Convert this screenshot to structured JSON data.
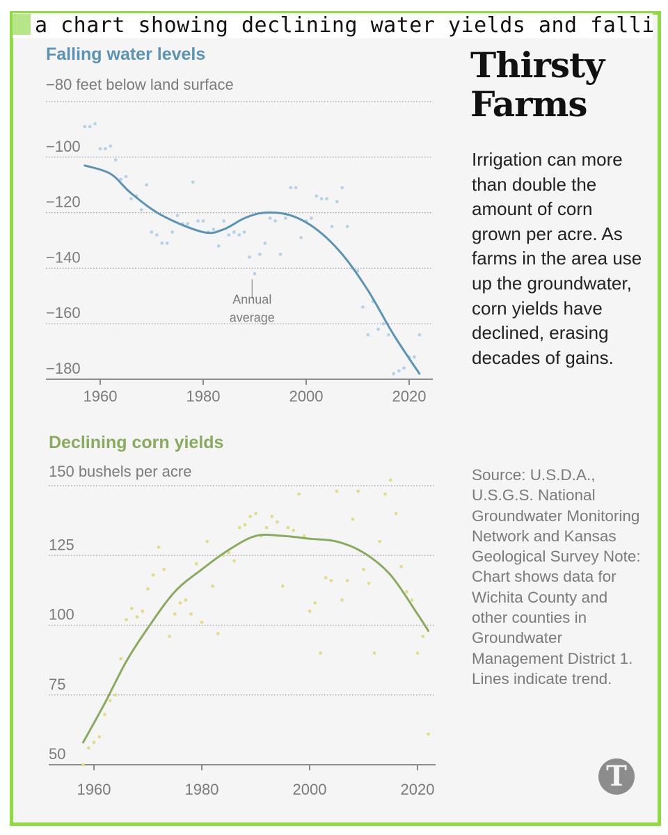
{
  "caption": "a chart showing declining water yields and falling corn",
  "headline": "Thirsty Farms",
  "dek": "Irrigation can more than double the amount of corn grown per acre. As farms in the area use up the groundwater, corn yields have declined, erasing decades of gains.",
  "source_note": "Source: U.S.D.A., U.S.G.S. National Groundwater Monitoring Network and Kansas Geological Survey Note: Chart shows data for Wichita County and other counties in Groundwater Management District 1. Lines indicate trend.",
  "logo_glyph": "T",
  "colors": {
    "water": "#5b93b6",
    "water_dots": "#b6d3e6",
    "corn": "#8aab5f",
    "corn_dots": "#e3dc8c",
    "frame": "#8fdc3f",
    "axis_text": "#7b7b7b"
  },
  "chart_data": [
    {
      "type": "scatter",
      "title": "Falling water levels",
      "unit_label": "feet below land surface",
      "top_label": "−80 feet below land surface",
      "ylim": [
        -180,
        -80
      ],
      "yticks": [
        -100,
        -120,
        -140,
        -160,
        -180
      ],
      "ytick_labels": [
        "−100",
        "−120",
        "−140",
        "−160",
        "−180"
      ],
      "xlim": [
        1955,
        2024
      ],
      "xticks": [
        1960,
        1980,
        2000,
        2020
      ],
      "annotation": "Annual average",
      "grid": true,
      "series": [
        {
          "role": "annual average",
          "x": [
            1957,
            1958,
            1959,
            1960,
            1961,
            1962,
            1963,
            1964,
            1965,
            1966,
            1967,
            1968,
            1969,
            1970,
            1971,
            1972,
            1973,
            1974,
            1975,
            1976,
            1977,
            1978,
            1979,
            1980,
            1981,
            1982,
            1983,
            1984,
            1985,
            1986,
            1987,
            1988,
            1989,
            1990,
            1991,
            1992,
            1993,
            1994,
            1995,
            1996,
            1997,
            1998,
            1999,
            2000,
            2001,
            2002,
            2003,
            2004,
            2005,
            2006,
            2007,
            2008,
            2009,
            2010,
            2011,
            2012,
            2013,
            2014,
            2015,
            2016,
            2017,
            2018,
            2019,
            2020,
            2021,
            2022
          ],
          "y": [
            -89,
            -89,
            -88,
            -97,
            -97,
            -96,
            -101,
            -108,
            -107,
            -115,
            -114,
            -119,
            -110,
            -127,
            -128,
            -131,
            -131,
            -127,
            -121,
            -124,
            -124,
            -109,
            -123,
            -123,
            -127,
            -126,
            -132,
            -123,
            -128,
            -127,
            -128,
            -127,
            -136,
            -142,
            -135,
            -131,
            -122,
            -123,
            -135,
            -122,
            -111,
            -111,
            -129,
            -123,
            -122,
            -114,
            -115,
            -115,
            -125,
            -116,
            -111,
            -125,
            -140,
            -141,
            -154,
            -164,
            -152,
            -162,
            -160,
            -164,
            -178,
            -177,
            -176,
            -172,
            -172,
            -164
          ]
        },
        {
          "role": "trend",
          "x": [
            1957,
            1962,
            1966,
            1972,
            1980,
            1984,
            1988,
            1992,
            1997,
            2002,
            2007,
            2012,
            2017,
            2022
          ],
          "y": [
            -103,
            -106,
            -113,
            -121,
            -127,
            -126,
            -122,
            -120,
            -121,
            -126,
            -135,
            -148,
            -164,
            -178
          ]
        }
      ]
    },
    {
      "type": "scatter",
      "title": "Declining corn yields",
      "unit_label": "bushels per acre",
      "top_label": "150 bushels per acre",
      "ylim": [
        45,
        150
      ],
      "yticks": [
        125,
        100,
        75,
        50
      ],
      "ytick_labels": [
        "125",
        "100",
        "75",
        "50"
      ],
      "xlim": [
        1953,
        2024
      ],
      "xticks": [
        1960,
        1980,
        2000,
        2020
      ],
      "grid": true,
      "series": [
        {
          "role": "annual yield",
          "x": [
            1958,
            1959,
            1960,
            1961,
            1962,
            1963,
            1964,
            1965,
            1966,
            1967,
            1968,
            1969,
            1970,
            1971,
            1972,
            1973,
            1974,
            1975,
            1976,
            1977,
            1978,
            1979,
            1980,
            1981,
            1982,
            1983,
            1984,
            1985,
            1986,
            1987,
            1988,
            1989,
            1990,
            1991,
            1992,
            1993,
            1994,
            1995,
            1996,
            1997,
            1998,
            1999,
            2000,
            2001,
            2002,
            2003,
            2004,
            2005,
            2006,
            2007,
            2008,
            2009,
            2010,
            2011,
            2012,
            2013,
            2014,
            2015,
            2016,
            2017,
            2018,
            2019,
            2020,
            2021,
            2022
          ],
          "y": [
            50,
            56,
            58,
            60,
            68,
            73,
            75,
            88,
            102,
            106,
            103,
            105,
            113,
            118,
            128,
            120,
            96,
            104,
            108,
            109,
            104,
            122,
            101,
            130,
            114,
            97,
            125,
            126,
            123,
            135,
            136,
            139,
            140,
            132,
            135,
            139,
            137,
            114,
            135,
            134,
            147,
            132,
            105,
            108,
            90,
            117,
            116,
            148,
            109,
            116,
            138,
            148,
            120,
            115,
            90,
            130,
            147,
            152,
            140,
            121,
            112,
            109,
            90,
            96,
            61
          ]
        },
        {
          "role": "trend",
          "x": [
            1958,
            1962,
            1966,
            1970,
            1975,
            1980,
            1985,
            1990,
            1995,
            2000,
            2005,
            2010,
            2015,
            2020,
            2022
          ],
          "y": [
            58,
            72,
            87,
            99,
            112,
            120,
            127,
            132,
            132,
            131,
            130,
            126,
            118,
            104,
            98
          ]
        }
      ]
    }
  ]
}
